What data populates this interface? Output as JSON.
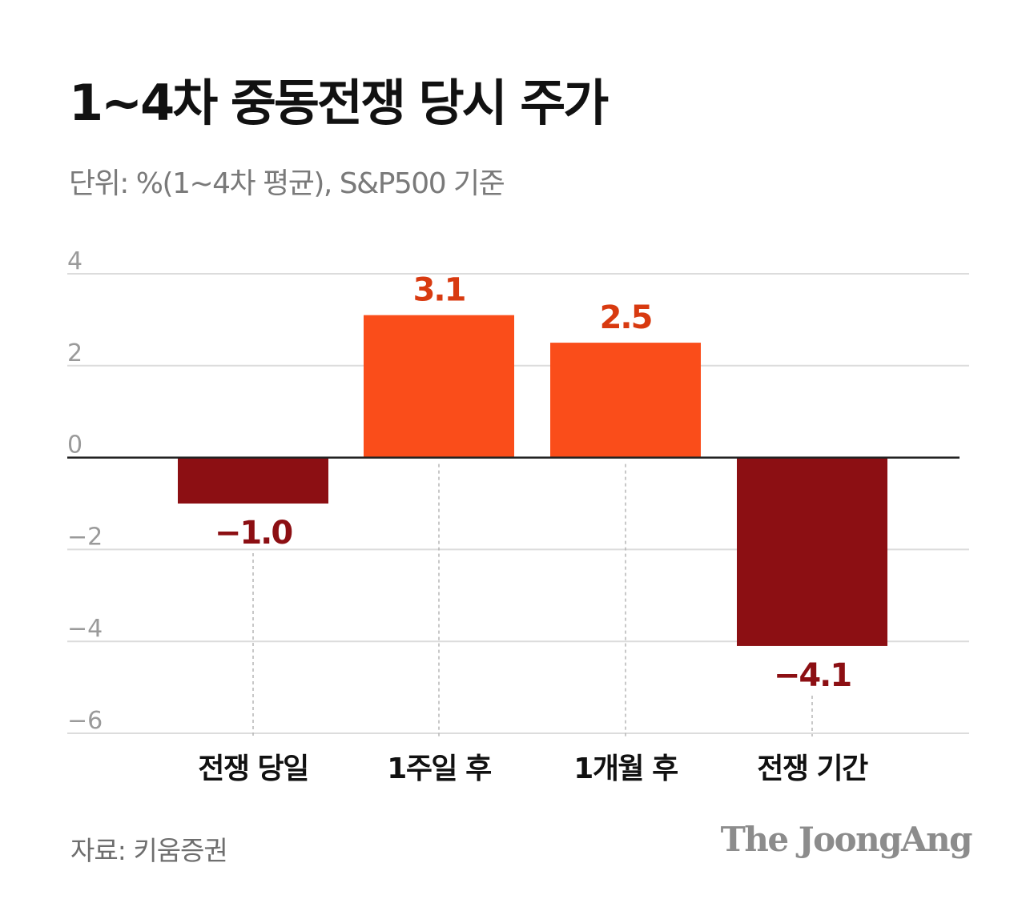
{
  "title": "1~4차 중동전쟁 당시 주가",
  "subtitle": "단위: %(1~4차 평균), S&P500 기준",
  "source": "자료: 키움증권",
  "brand": "The JoongAng",
  "colors": {
    "positive": "#fa4d1a",
    "negative": "#8c0f13",
    "positive_label": "#d83a10",
    "negative_label": "#8c0f13",
    "grid": "#dcdcdc",
    "axis_text": "#9a9a9a"
  },
  "chart_data": {
    "type": "bar",
    "categories": [
      "전쟁 당일",
      "1주일 후",
      "1개월 후",
      "전쟁 기간"
    ],
    "values": [
      -1.0,
      3.1,
      2.5,
      -4.1
    ],
    "value_labels": [
      "−1.0",
      "3.1",
      "2.5",
      "−4.1"
    ],
    "yticks": [
      4,
      2,
      0,
      -2,
      -4,
      -6
    ],
    "ytick_labels": [
      "4",
      "2",
      "0",
      "−2",
      "−4",
      "−6"
    ],
    "ylim": [
      -6,
      4
    ],
    "grid": true,
    "xlabel": "",
    "ylabel": ""
  }
}
